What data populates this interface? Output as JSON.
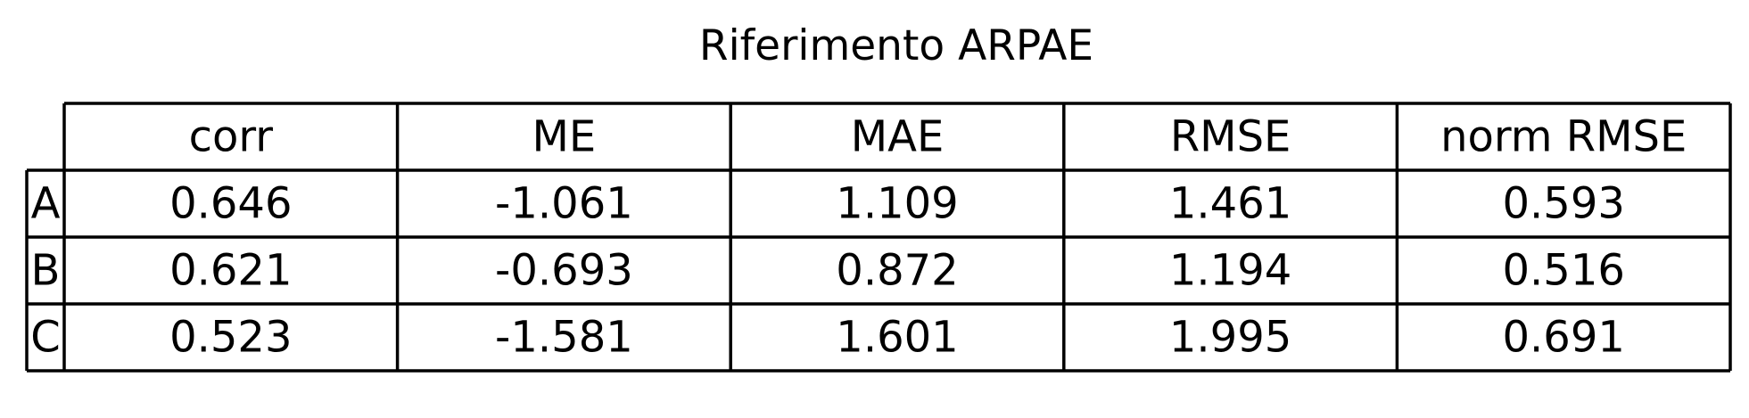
{
  "chart_data": {
    "type": "table",
    "title": "Riferimento ARPAE",
    "columns": [
      "corr",
      "ME",
      "MAE",
      "RMSE",
      "norm RMSE"
    ],
    "row_labels": [
      "A",
      "B",
      "C"
    ],
    "cells": [
      [
        "0.646",
        "-1.061",
        "1.109",
        "1.461",
        "0.593"
      ],
      [
        "0.621",
        "-0.693",
        "0.872",
        "1.194",
        "0.516"
      ],
      [
        "0.523",
        "-1.581",
        "1.601",
        "1.995",
        "0.691"
      ]
    ]
  }
}
